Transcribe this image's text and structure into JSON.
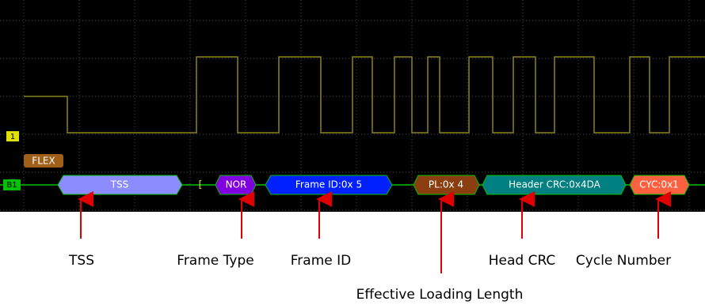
{
  "scope": {
    "channel_marker": "1",
    "bus_marker": "B1",
    "protocol_tag": "FLEX",
    "packets": [
      "TSS",
      "[",
      "NOR",
      "Frame ID:0x 5",
      "PL:0x 4",
      "Header CRC:0x4DA",
      "CYC:0x1"
    ]
  },
  "annotations": [
    "TSS",
    "Frame Type",
    "Frame ID",
    "Effective Loading Length",
    "Head CRC",
    "Cycle Number"
  ]
}
